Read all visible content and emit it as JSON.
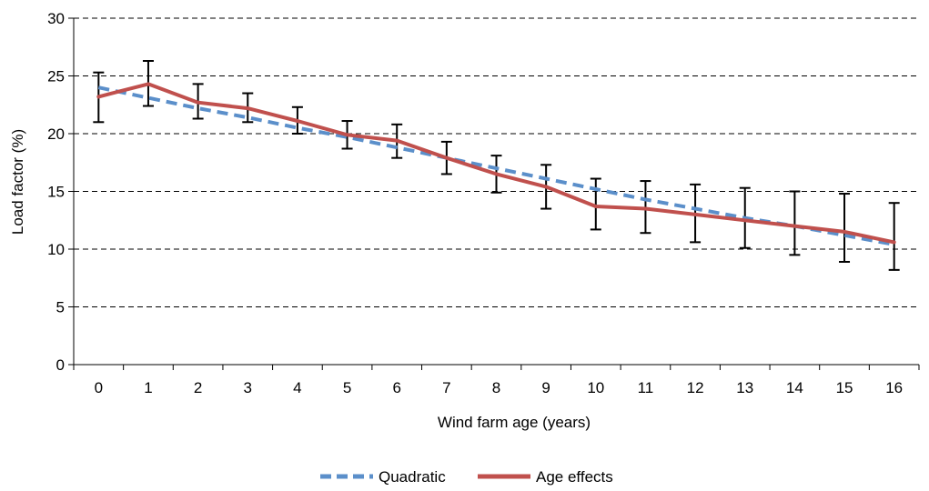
{
  "chart_data": {
    "type": "line",
    "xlabel": "Wind farm age (years)",
    "ylabel": "Load factor (%)",
    "ylim": [
      0,
      30
    ],
    "yticks": [
      0,
      5,
      10,
      15,
      20,
      25,
      30
    ],
    "categories": [
      "0",
      "1",
      "2",
      "3",
      "4",
      "5",
      "6",
      "7",
      "8",
      "9",
      "10",
      "11",
      "12",
      "13",
      "14",
      "15",
      "16"
    ],
    "grid": "horizontal dashed",
    "legend_position": "bottom",
    "series": [
      {
        "name": "Quadratic",
        "style": "dashed",
        "color": "#5B8FCA",
        "values": [
          24.0,
          23.1,
          22.2,
          21.4,
          20.5,
          19.7,
          18.8,
          17.9,
          17.0,
          16.1,
          15.2,
          14.3,
          13.5,
          12.7,
          12.0,
          11.2,
          10.4
        ]
      },
      {
        "name": "Age effects",
        "style": "solid",
        "color": "#C0504D",
        "values": [
          23.2,
          24.3,
          22.7,
          22.2,
          21.1,
          19.9,
          19.4,
          17.9,
          16.5,
          15.4,
          13.7,
          13.5,
          13.0,
          12.5,
          12.0,
          11.5,
          10.6
        ]
      }
    ],
    "error_bars": {
      "series": "Age effects",
      "low": [
        21.0,
        22.4,
        21.3,
        21.0,
        20.0,
        18.7,
        17.9,
        16.5,
        14.9,
        13.5,
        11.7,
        11.4,
        10.6,
        10.1,
        9.5,
        8.9,
        8.2
      ],
      "high": [
        25.3,
        26.3,
        24.3,
        23.5,
        22.3,
        21.1,
        20.8,
        19.3,
        18.1,
        17.3,
        16.1,
        15.9,
        15.6,
        15.3,
        15.0,
        14.8,
        14.0
      ]
    }
  }
}
